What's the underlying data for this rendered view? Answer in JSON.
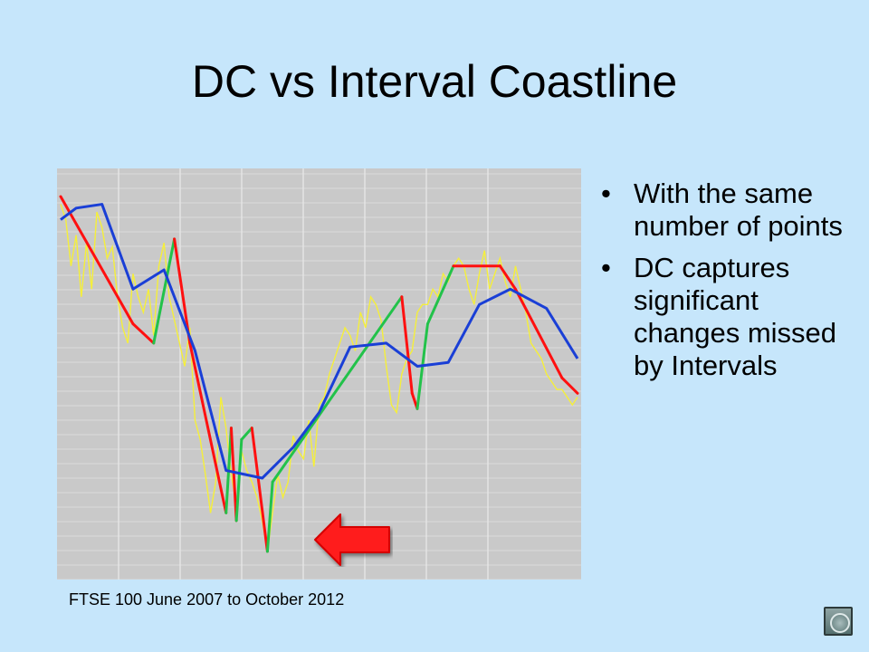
{
  "slide": {
    "title": "DC vs Interval Coastline",
    "caption": "FTSE 100 June 2007 to October 2012",
    "bullets": [
      "With the same number of points",
      "DC captures significant changes missed by Intervals"
    ],
    "bullet_glyph": "•"
  },
  "icons": {
    "arrow": "left-arrow-icon",
    "nav": "navigation-button-icon"
  },
  "colors": {
    "background": "#c6e6fb",
    "plot_background": "#c9c9c9",
    "price_line": "#f5ef3a",
    "dc_up": "#22c24a",
    "dc_down": "#ff1010",
    "interval": "#1a3fd6",
    "arrow": "#ff1a1a"
  },
  "chart_data": {
    "type": "line",
    "title": "",
    "xlabel": "",
    "ylabel": "",
    "xlim": [
      0,
      100
    ],
    "ylim": [
      0,
      100
    ],
    "grid": true,
    "legend": "none",
    "series": [
      {
        "role": "price",
        "x": [
          0,
          1,
          2,
          3,
          4,
          5,
          6,
          7,
          8,
          9,
          10,
          11,
          12,
          13,
          14,
          15,
          16,
          17,
          18,
          19,
          20,
          21,
          22,
          23,
          24,
          25,
          26,
          27,
          28,
          29,
          30,
          31,
          32,
          33,
          34,
          35,
          36,
          37,
          38,
          39,
          40,
          41,
          42,
          43,
          44,
          45,
          46,
          47,
          48,
          49,
          50,
          51,
          52,
          53,
          54,
          55,
          56,
          57,
          58,
          59,
          60,
          61,
          62,
          63,
          64,
          65,
          66,
          67,
          68,
          69,
          70,
          71,
          72,
          73,
          74,
          75,
          76,
          77,
          78,
          79,
          80,
          81,
          82,
          83,
          84,
          85,
          86,
          87,
          88,
          89,
          90,
          91,
          92,
          93,
          94,
          95,
          96,
          97,
          98,
          99,
          100
        ],
        "y": [
          94,
          90,
          78,
          86,
          70,
          84,
          72,
          92,
          88,
          80,
          83,
          70,
          62,
          58,
          76,
          70,
          66,
          72,
          60,
          78,
          84,
          70,
          64,
          58,
          52,
          62,
          38,
          33,
          24,
          14,
          22,
          44,
          36,
          24,
          16,
          30,
          25,
          22,
          18,
          12,
          4,
          14,
          24,
          18,
          22,
          34,
          30,
          28,
          38,
          26,
          42,
          44,
          50,
          54,
          58,
          62,
          60,
          56,
          66,
          62,
          70,
          68,
          64,
          52,
          42,
          40,
          50,
          54,
          56,
          66,
          68,
          68,
          72,
          70,
          76,
          74,
          78,
          80,
          78,
          72,
          68,
          76,
          82,
          72,
          76,
          80,
          74,
          70,
          78,
          72,
          66,
          58,
          56,
          54,
          50,
          48,
          46,
          46,
          44,
          42,
          44
        ]
      },
      {
        "role": "dc_coastline",
        "x": [
          0,
          14,
          18,
          22,
          25,
          32,
          33,
          34,
          35,
          37,
          40,
          41,
          66,
          68,
          69,
          71,
          76,
          85,
          88,
          97,
          100
        ],
        "y": [
          96,
          63,
          58,
          85,
          58,
          14,
          36,
          12,
          33,
          36,
          4,
          22,
          70,
          45,
          41,
          63,
          78,
          78,
          72,
          49,
          45
        ]
      },
      {
        "role": "interval_coastline",
        "x": [
          0,
          3,
          8,
          14,
          20,
          26,
          32,
          39,
          45,
          50,
          56,
          63,
          69,
          75,
          81,
          87,
          94,
          100
        ],
        "y": [
          90,
          93,
          94,
          72,
          77,
          56,
          25,
          23,
          31,
          40,
          57,
          58,
          52,
          53,
          68,
          72,
          67,
          54
        ]
      }
    ]
  }
}
